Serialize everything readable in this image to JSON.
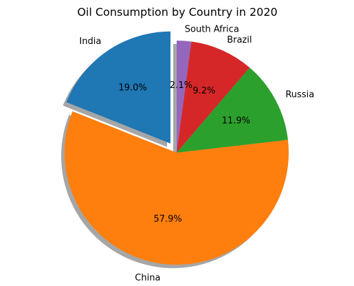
{
  "chart_data": {
    "type": "pie",
    "title": "Oil Consumption by Country in 2020",
    "slices": [
      {
        "label": "India",
        "value": 19.0,
        "pct_label": "19.0%",
        "color": "#1f77b4",
        "explode": true
      },
      {
        "label": "China",
        "value": 57.9,
        "pct_label": "57.9%",
        "color": "#ff7f0e",
        "explode": false
      },
      {
        "label": "Russia",
        "value": 11.9,
        "pct_label": "11.9%",
        "color": "#2ca02c",
        "explode": false
      },
      {
        "label": "Brazil",
        "value": 9.2,
        "pct_label": "9.2%",
        "color": "#d62728",
        "explode": false
      },
      {
        "label": "South Africa",
        "value": 2.1,
        "pct_label": "2.1%",
        "color": "#9467bd",
        "explode": false
      }
    ],
    "start_angle_deg": 90,
    "direction": "counterclockwise",
    "shadow": true,
    "legend": "none"
  }
}
